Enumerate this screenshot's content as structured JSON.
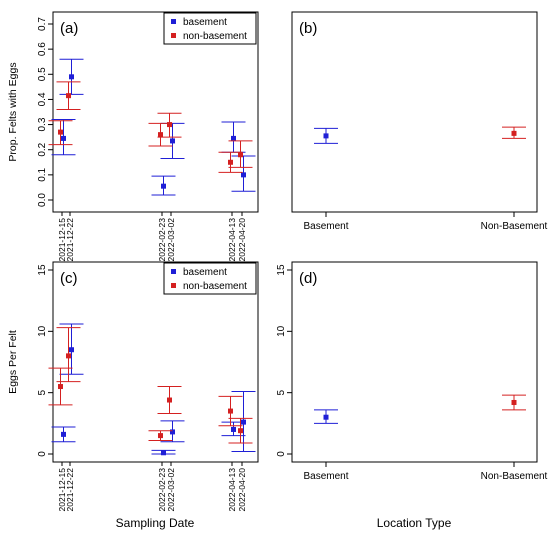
{
  "colors": {
    "basement": "#1f1fd6",
    "non_basement": "#d42020"
  },
  "x_titles": {
    "left": "Sampling Date",
    "right": "Location Type"
  },
  "dates": [
    "2021-12-15",
    "2021-12-22",
    "2022-02-23",
    "2022-03-02",
    "2022-04-13",
    "2022-04-20"
  ],
  "dates_bottom": [
    "2021-12-15",
    "2021-12-22",
    "2022-02-23",
    "2022-03-02",
    "2022-04-13",
    "2022-04-20"
  ],
  "chart_data": [
    {
      "panel": "(a)",
      "type": "scatter",
      "ylabel": "Prop. Felts with Eggs",
      "ylim": [
        0,
        0.7
      ],
      "yticks": [
        "0.0",
        "0.1",
        "0.2",
        "0.3",
        "0.4",
        "0.5",
        "0.6",
        "0.7"
      ],
      "legend": {
        "position": "top-right",
        "entries": [
          "basement",
          "non-basement"
        ]
      },
      "series": [
        {
          "name": "basement",
          "points": [
            {
              "x": "2021-12-15",
              "y": 0.245,
              "lo": 0.18,
              "hi": 0.32
            },
            {
              "x": "2021-12-22",
              "y": 0.49,
              "lo": 0.42,
              "hi": 0.56
            },
            {
              "x": "2022-02-23",
              "y": 0.055,
              "lo": 0.02,
              "hi": 0.095
            },
            {
              "x": "2022-03-02",
              "y": 0.235,
              "lo": 0.165,
              "hi": 0.305
            },
            {
              "x": "2022-04-13",
              "y": 0.245,
              "lo": 0.19,
              "hi": 0.31
            },
            {
              "x": "2022-04-20",
              "y": 0.1,
              "lo": 0.035,
              "hi": 0.175
            }
          ]
        },
        {
          "name": "non-basement",
          "points": [
            {
              "x": "2021-12-15",
              "y": 0.27,
              "lo": 0.22,
              "hi": 0.315
            },
            {
              "x": "2021-12-22",
              "y": 0.415,
              "lo": 0.36,
              "hi": 0.47
            },
            {
              "x": "2022-02-23",
              "y": 0.26,
              "lo": 0.215,
              "hi": 0.305
            },
            {
              "x": "2022-03-02",
              "y": 0.3,
              "lo": 0.25,
              "hi": 0.345
            },
            {
              "x": "2022-04-13",
              "y": 0.15,
              "lo": 0.11,
              "hi": 0.19
            },
            {
              "x": "2022-04-20",
              "y": 0.18,
              "lo": 0.13,
              "hi": 0.235
            }
          ]
        }
      ]
    },
    {
      "panel": "(b)",
      "type": "scatter",
      "ylim": [
        0,
        0.7
      ],
      "categories": [
        "Basement",
        "Non-Basement"
      ],
      "series": [
        {
          "name": "basement",
          "points": [
            {
              "x": "Basement",
              "y": 0.255,
              "lo": 0.225,
              "hi": 0.285
            }
          ]
        },
        {
          "name": "non-basement",
          "points": [
            {
              "x": "Non-Basement",
              "y": 0.265,
              "lo": 0.245,
              "hi": 0.29
            }
          ]
        }
      ]
    },
    {
      "panel": "(c)",
      "type": "scatter",
      "ylabel": "Eggs Per Felt",
      "ylim": [
        0,
        15
      ],
      "yticks": [
        "0",
        "5",
        "10",
        "15"
      ],
      "legend": {
        "position": "top-right",
        "entries": [
          "basement",
          "non-basement"
        ]
      },
      "series": [
        {
          "name": "basement",
          "points": [
            {
              "x": "2021-12-15",
              "y": 1.6,
              "lo": 1.0,
              "hi": 2.2
            },
            {
              "x": "2021-12-22",
              "y": 8.5,
              "lo": 6.5,
              "hi": 10.6
            },
            {
              "x": "2022-02-23",
              "y": 0.1,
              "lo": 0.0,
              "hi": 0.3
            },
            {
              "x": "2022-03-02",
              "y": 1.8,
              "lo": 1.0,
              "hi": 2.7
            },
            {
              "x": "2022-04-13",
              "y": 2.0,
              "lo": 1.5,
              "hi": 2.6
            },
            {
              "x": "2022-04-20",
              "y": 2.6,
              "lo": 0.2,
              "hi": 5.1
            }
          ]
        },
        {
          "name": "non-basement",
          "points": [
            {
              "x": "2021-12-15",
              "y": 5.5,
              "lo": 4.0,
              "hi": 7.0
            },
            {
              "x": "2021-12-22",
              "y": 8.0,
              "lo": 5.9,
              "hi": 10.3
            },
            {
              "x": "2022-02-23",
              "y": 1.5,
              "lo": 1.1,
              "hi": 1.9
            },
            {
              "x": "2022-03-02",
              "y": 4.4,
              "lo": 3.3,
              "hi": 5.5
            },
            {
              "x": "2022-04-13",
              "y": 3.5,
              "lo": 2.3,
              "hi": 4.7
            },
            {
              "x": "2022-04-20",
              "y": 1.9,
              "lo": 0.9,
              "hi": 2.9
            }
          ]
        }
      ]
    },
    {
      "panel": "(d)",
      "type": "scatter",
      "ylim": [
        0,
        15
      ],
      "yticks": [
        "0",
        "5",
        "10",
        "15"
      ],
      "categories": [
        "Basement",
        "Non-Basement"
      ],
      "series": [
        {
          "name": "basement",
          "points": [
            {
              "x": "Basement",
              "y": 3.0,
              "lo": 2.5,
              "hi": 3.6
            }
          ]
        },
        {
          "name": "non-basement",
          "points": [
            {
              "x": "Non-Basement",
              "y": 4.2,
              "lo": 3.6,
              "hi": 4.8
            }
          ]
        }
      ]
    }
  ]
}
